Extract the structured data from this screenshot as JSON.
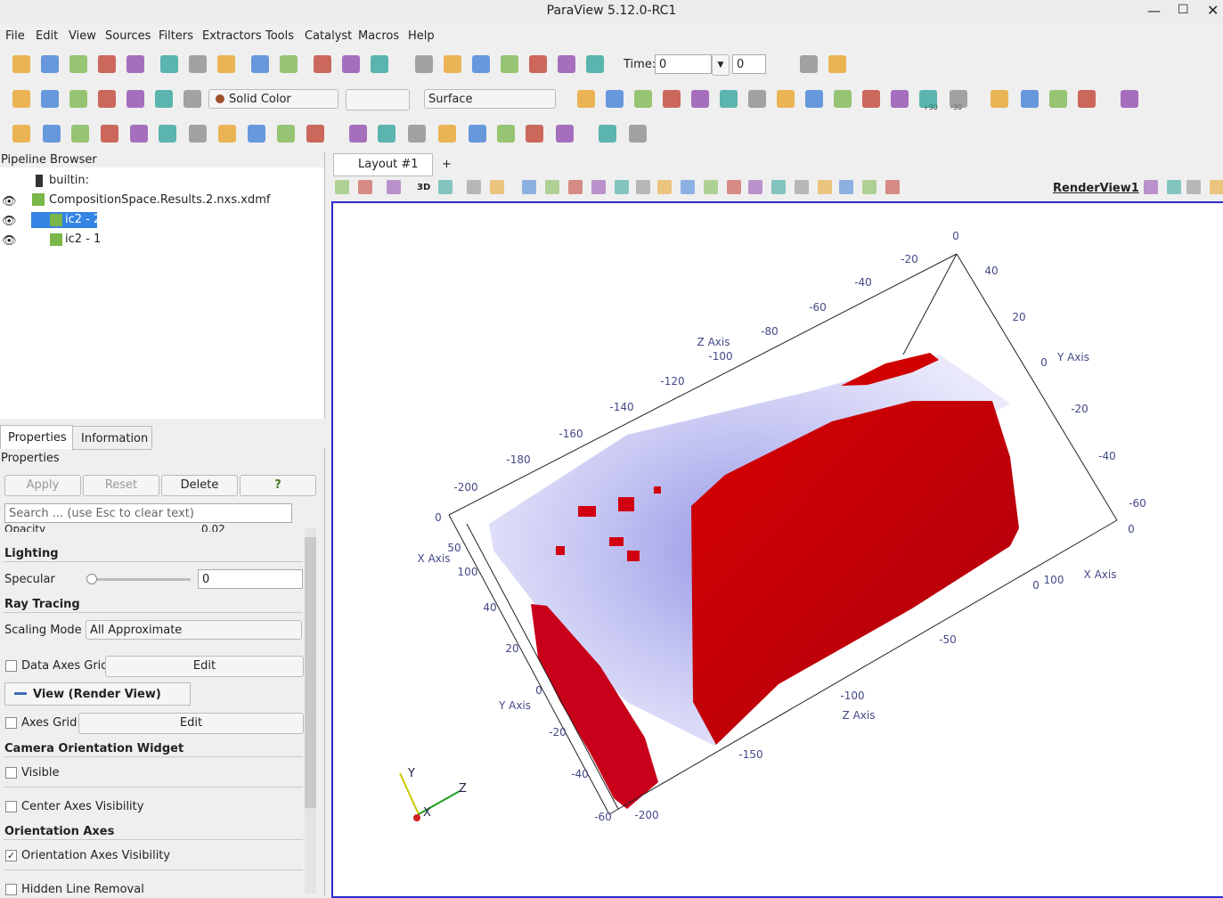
{
  "window": {
    "title": "ParaView 5.12.0-RC1"
  },
  "menu": [
    "File",
    "Edit",
    "View",
    "Sources",
    "Filters",
    "Extractors",
    "Tools",
    "Catalyst",
    "Macros",
    "Help"
  ],
  "toolbar": {
    "time_label": "Time:",
    "time_value": "0",
    "time_index": "0",
    "color_by": "Solid Color",
    "representation": "Surface",
    "rotate_plus": "+90",
    "rotate_minus": "-90"
  },
  "pipeline": {
    "title": "Pipeline Browser",
    "items": [
      "builtin:",
      "CompositionSpace.Results.2.nxs.xdmf",
      "ic2 - 2",
      "ic2 - 1"
    ]
  },
  "tabs": [
    "Properties",
    "Information"
  ],
  "properties": {
    "title": "Properties",
    "buttons": [
      "Apply",
      "Reset",
      "Delete",
      "?"
    ],
    "search": "Search ... (use Esc to clear text)",
    "opacity_label": "Opacity",
    "opacity_value": "0.02",
    "lighting": "Lighting",
    "specular_label": "Specular",
    "specular_value": "0",
    "ray_tracing": "Ray Tracing",
    "scaling_label": "Scaling Mode",
    "scaling_value": "All Approximate",
    "data_axes_grid": "Data Axes Grid",
    "edit": "Edit",
    "view_section": "View (Render View)",
    "axes_grid": "Axes Grid",
    "camera_widget": "Camera Orientation Widget",
    "visible": "Visible",
    "center_axes": "Center Axes Visibility",
    "orientation_axes": "Orientation Axes",
    "orientation_axes_visibility": "Orientation Axes Visibility",
    "hidden_line_removal": "Hidden Line Removal"
  },
  "layout": {
    "tab": "Layout #1",
    "add_tab": "+",
    "view_3d": "3D",
    "view_name": "RenderView1"
  },
  "render_view": {
    "annotations": [
      "0",
      "-20",
      "-40",
      "-60",
      "-80",
      "Z Axis",
      "-100",
      "-120",
      "-140",
      "-160",
      "-180",
      "-200",
      "0",
      "40",
      "20",
      "0",
      "Y Axis",
      "-20",
      "-40",
      "-60",
      "0",
      "0",
      "100",
      "X Axis",
      "-50",
      "-100",
      "Z Axis",
      "-150",
      "-200",
      "X Axis",
      "50",
      "100",
      "40",
      "20",
      "0",
      "Y Axis",
      "-20",
      "-40",
      "-60"
    ],
    "orientation": [
      "Y",
      "Z",
      "X"
    ]
  }
}
